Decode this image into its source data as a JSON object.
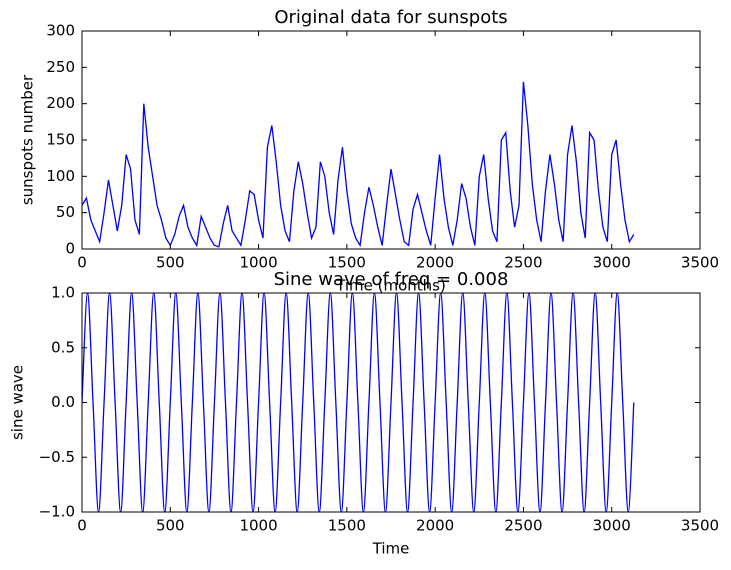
{
  "chart_data": [
    {
      "type": "line",
      "title": "Original data for sunspots",
      "xlabel": "Time (months)",
      "ylabel": "sunspots number",
      "color": "#0000ff",
      "xlim": [
        0,
        3500
      ],
      "ylim": [
        0,
        300
      ],
      "xticks": [
        0,
        500,
        1000,
        1500,
        2000,
        2500,
        3000,
        3500
      ],
      "yticks": [
        0,
        50,
        100,
        150,
        200,
        250,
        300
      ],
      "x": [
        0,
        25,
        50,
        75,
        100,
        125,
        150,
        175,
        200,
        225,
        250,
        275,
        300,
        325,
        350,
        375,
        400,
        425,
        450,
        475,
        500,
        525,
        550,
        575,
        600,
        625,
        650,
        675,
        700,
        725,
        750,
        775,
        800,
        825,
        850,
        875,
        900,
        925,
        950,
        975,
        1000,
        1025,
        1050,
        1075,
        1100,
        1125,
        1150,
        1175,
        1200,
        1225,
        1250,
        1275,
        1300,
        1325,
        1350,
        1375,
        1400,
        1425,
        1450,
        1475,
        1500,
        1525,
        1550,
        1575,
        1600,
        1625,
        1650,
        1675,
        1700,
        1725,
        1750,
        1775,
        1800,
        1825,
        1850,
        1875,
        1900,
        1925,
        1950,
        1975,
        2000,
        2025,
        2050,
        2075,
        2100,
        2125,
        2150,
        2175,
        2200,
        2225,
        2250,
        2275,
        2300,
        2325,
        2350,
        2375,
        2400,
        2425,
        2450,
        2475,
        2500,
        2525,
        2550,
        2575,
        2600,
        2625,
        2650,
        2675,
        2700,
        2725,
        2750,
        2775,
        2800,
        2825,
        2850,
        2875,
        2900,
        2925,
        2950,
        2975,
        3000,
        3025,
        3050,
        3075,
        3100,
        3125
      ],
      "values": [
        60,
        70,
        40,
        25,
        10,
        50,
        95,
        60,
        25,
        60,
        130,
        110,
        40,
        20,
        200,
        140,
        100,
        60,
        40,
        15,
        5,
        20,
        45,
        60,
        30,
        15,
        5,
        45,
        30,
        15,
        5,
        3,
        35,
        60,
        25,
        15,
        5,
        40,
        80,
        75,
        40,
        15,
        140,
        170,
        120,
        60,
        25,
        10,
        80,
        120,
        90,
        50,
        15,
        30,
        120,
        100,
        50,
        20,
        95,
        140,
        80,
        35,
        15,
        5,
        50,
        85,
        60,
        30,
        5,
        60,
        110,
        75,
        40,
        10,
        5,
        55,
        75,
        50,
        25,
        5,
        70,
        130,
        70,
        30,
        5,
        40,
        90,
        70,
        30,
        5,
        100,
        130,
        70,
        25,
        10,
        150,
        160,
        80,
        30,
        60,
        230,
        170,
        90,
        40,
        10,
        80,
        130,
        90,
        40,
        10,
        130,
        170,
        120,
        50,
        15,
        160,
        150,
        80,
        30,
        10,
        130,
        150,
        90,
        40,
        10,
        20
      ]
    },
    {
      "type": "line",
      "title": "Sine wave of freq = 0.008",
      "xlabel": "Time",
      "ylabel": "sine wave",
      "color": "#0000ff",
      "xlim": [
        0,
        3500
      ],
      "ylim": [
        -1,
        1
      ],
      "xticks": [
        0,
        500,
        1000,
        1500,
        2000,
        2500,
        3000,
        3500
      ],
      "yticks": [
        {
          "value": -1,
          "label": "−1.0"
        },
        {
          "value": -0.5,
          "label": "−0.5"
        },
        {
          "value": 0,
          "label": "0.0"
        },
        0.5,
        {
          "value": 1,
          "label": "1.0"
        }
      ],
      "x": [
        0,
        31.25,
        62.5,
        93.75,
        125,
        156.25,
        187.5,
        218.75,
        250,
        281.25,
        312.5,
        343.75,
        375,
        406.25,
        437.5,
        468.75,
        500,
        531.25,
        562.5,
        593.75,
        625,
        656.25,
        687.5,
        718.75,
        750,
        781.25,
        812.5,
        843.75,
        875,
        906.25,
        937.5,
        968.75,
        1000,
        1031.25,
        1062.5,
        1093.75,
        1125,
        1156.25,
        1187.5,
        1218.75,
        1250,
        1281.25,
        1312.5,
        1343.75,
        1375,
        1406.25,
        1437.5,
        1468.75,
        1500,
        1531.25,
        1562.5,
        1593.75,
        1625,
        1656.25,
        1687.5,
        1718.75,
        1750,
        1781.25,
        1812.5,
        1843.75,
        1875,
        1906.25,
        1937.5,
        1968.75,
        2000,
        2031.25,
        2062.5,
        2093.75,
        2125,
        2156.25,
        2187.5,
        2218.75,
        2250,
        2281.25,
        2312.5,
        2343.75,
        2375,
        2406.25,
        2437.5,
        2468.75,
        2500,
        2531.25,
        2562.5,
        2593.75,
        2625,
        2656.25,
        2687.5,
        2718.75,
        2750,
        2781.25,
        2812.5,
        2843.75,
        2875,
        2906.25,
        2937.5,
        2968.75,
        3000,
        3031.25,
        3062.5,
        3093.75,
        3125
      ],
      "values": [
        0,
        1,
        0,
        -1,
        0,
        1,
        0,
        -1,
        0,
        1,
        0,
        -1,
        0,
        1,
        0,
        -1,
        0,
        1,
        0,
        -1,
        0,
        1,
        0,
        -1,
        0,
        1,
        0,
        -1,
        0,
        1,
        0,
        -1,
        0,
        1,
        0,
        -1,
        0,
        1,
        0,
        -1,
        0,
        1,
        0,
        -1,
        0,
        1,
        0,
        -1,
        0,
        1,
        0,
        -1,
        0,
        1,
        0,
        -1,
        0,
        1,
        0,
        -1,
        0,
        1,
        0,
        -1,
        0,
        1,
        0,
        -1,
        0,
        1,
        0,
        -1,
        0,
        1,
        0,
        -1,
        0,
        1,
        0,
        -1,
        0,
        1,
        0,
        -1,
        0,
        1,
        0,
        -1,
        0,
        1,
        0,
        -1,
        0,
        1,
        0,
        -1,
        0,
        1,
        0,
        -1,
        0
      ]
    }
  ]
}
